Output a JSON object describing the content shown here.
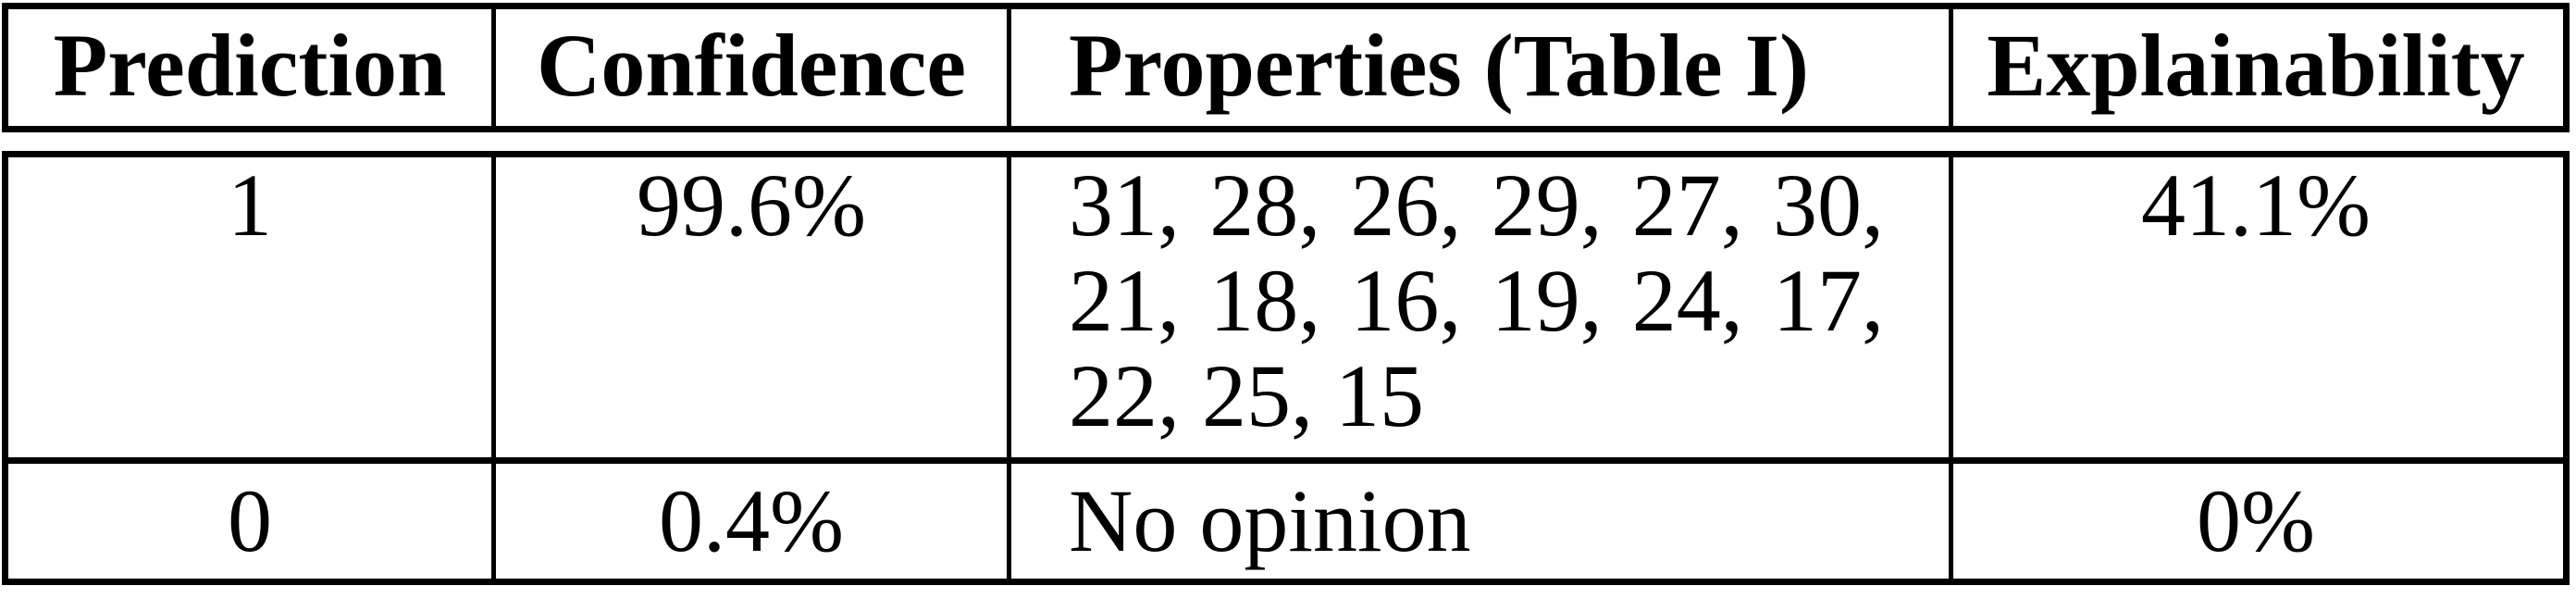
{
  "table": {
    "colors": {
      "border": "#000000",
      "background": "#ffffff",
      "text": "#000000"
    },
    "columns": [
      {
        "label": "Prediction"
      },
      {
        "label": "Confidence"
      },
      {
        "label": "Properties (Table I)"
      },
      {
        "label": "Explainability"
      }
    ],
    "rows": [
      {
        "prediction": "1",
        "confidence": "99.6%",
        "properties_lines": [
          "31, 28, 26, 29, 27, 30,",
          "21, 18, 16, 19, 24, 17,",
          "22, 25, 15"
        ],
        "explainability": "41.1%"
      },
      {
        "prediction": "0",
        "confidence": "0.4%",
        "properties_lines": [
          "No opinion"
        ],
        "explainability": "0%"
      }
    ]
  }
}
